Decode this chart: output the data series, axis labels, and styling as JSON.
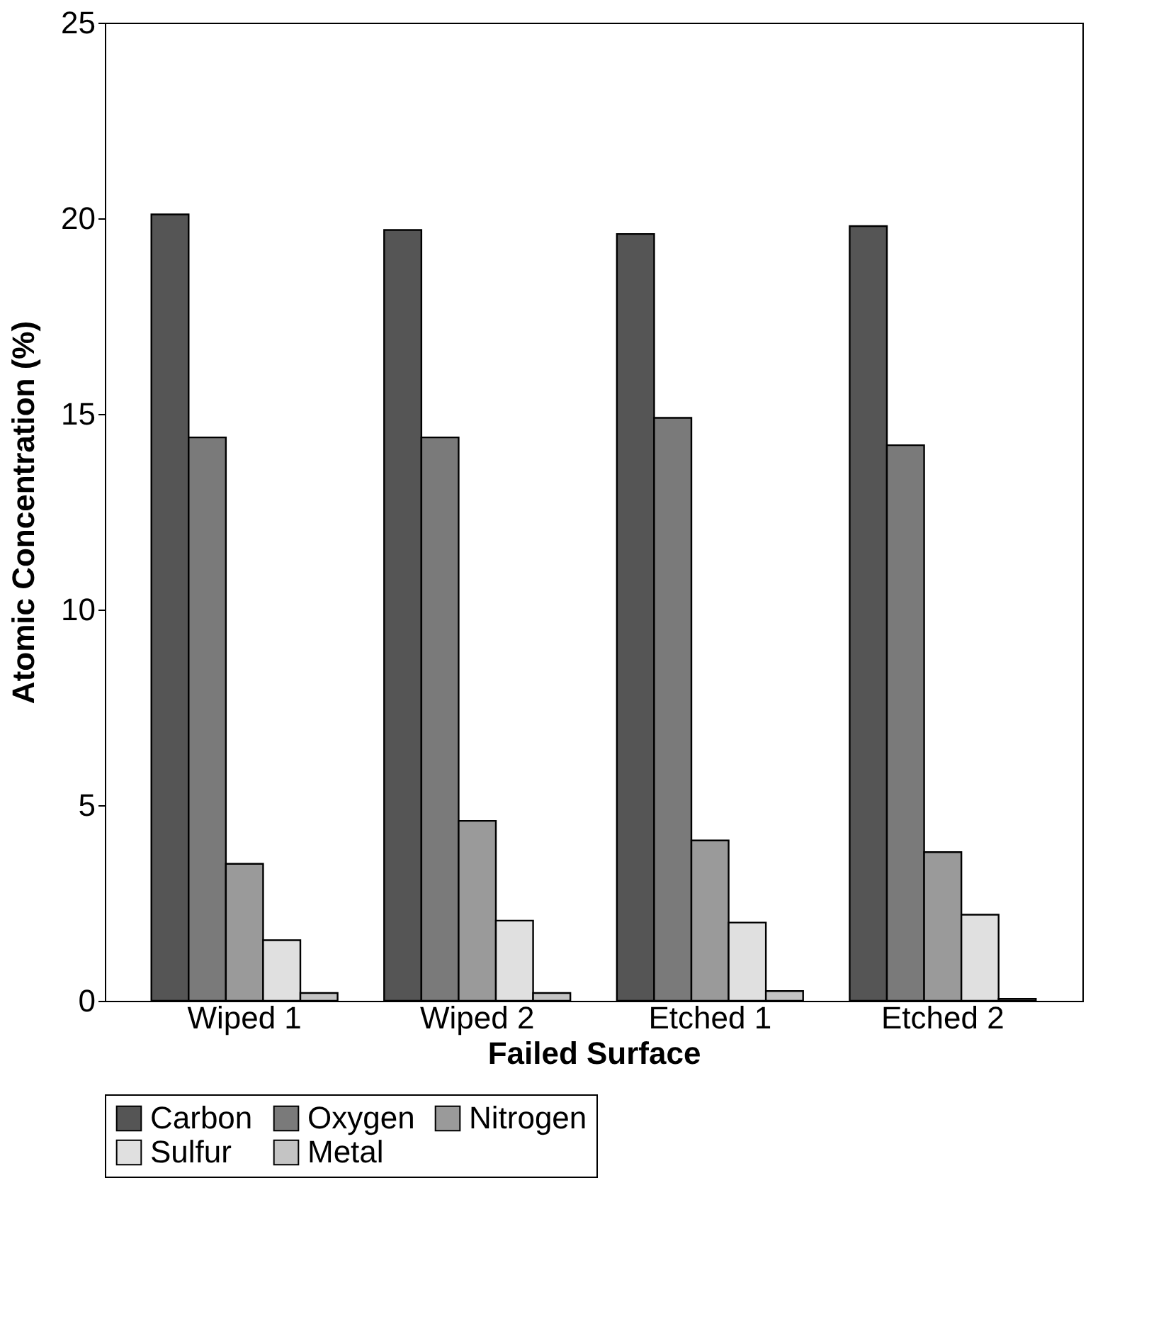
{
  "chart_data": {
    "type": "bar",
    "xlabel": "Failed Surface",
    "ylabel": "Atomic Concentration (%)",
    "categories": [
      "Wiped 1",
      "Wiped 2",
      "Etched 1",
      "Etched 2"
    ],
    "series": [
      {
        "name": "Carbon",
        "color": "#555555",
        "values": [
          20.1,
          19.7,
          19.6,
          19.8
        ]
      },
      {
        "name": "Oxygen",
        "color": "#7a7a7a",
        "values": [
          14.4,
          14.4,
          14.9,
          14.2
        ]
      },
      {
        "name": "Nitrogen",
        "color": "#9a9a9a",
        "values": [
          3.5,
          4.6,
          4.1,
          3.8
        ]
      },
      {
        "name": "Sulfur",
        "color": "#e0e0e0",
        "values": [
          1.55,
          2.05,
          2.0,
          2.2
        ]
      },
      {
        "name": "Metal",
        "color": "#c4c4c4",
        "values": [
          0.2,
          0.2,
          0.25,
          0.05
        ]
      }
    ],
    "ylim": [
      0,
      25
    ],
    "yticks": [
      0,
      5,
      10,
      15,
      20,
      25
    ],
    "grid": false,
    "legend": "bottom"
  }
}
